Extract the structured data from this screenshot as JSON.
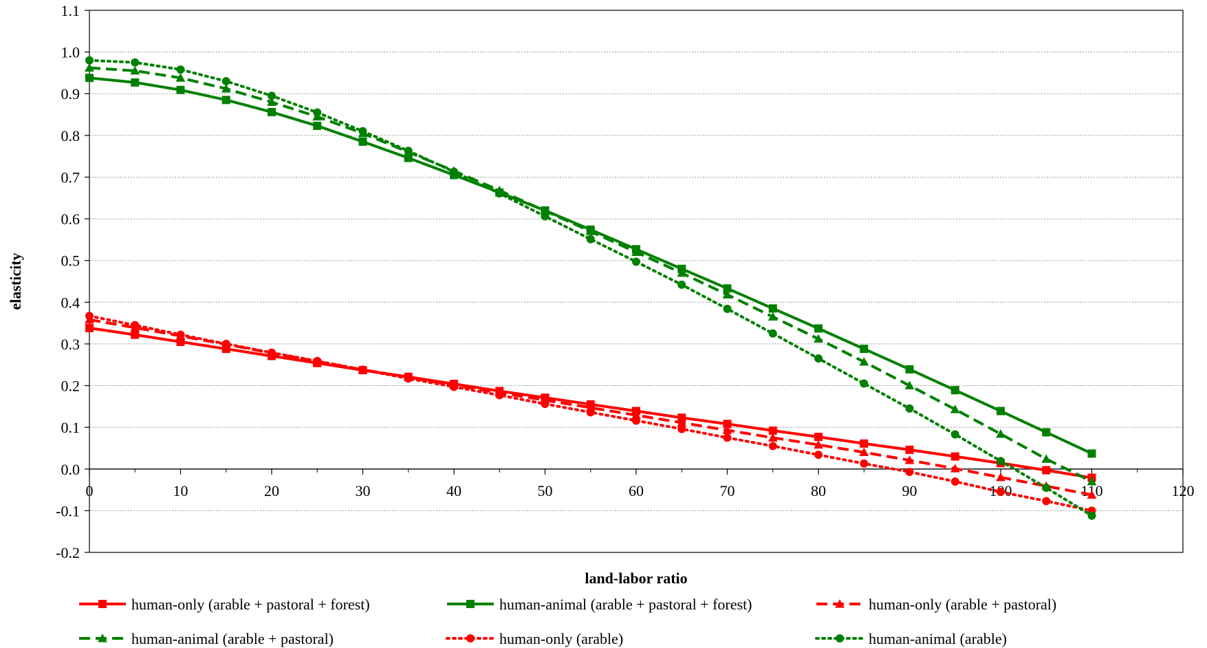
{
  "chart_data": {
    "type": "line",
    "xlabel": "land-labor ratio",
    "ylabel": "elasticity",
    "xlim": [
      0,
      120
    ],
    "ylim": [
      -0.2,
      1.1
    ],
    "x_ticks": [
      "0",
      "10",
      "20",
      "30",
      "40",
      "50",
      "60",
      "70",
      "80",
      "90",
      "100",
      "110",
      "120"
    ],
    "y_ticks": [
      "1.1",
      "1.0",
      "0.9",
      "0.8",
      "0.7",
      "0.6",
      "0.5",
      "0.4",
      "0.3",
      "0.2",
      "0.1",
      "0.0",
      "-0.1",
      "-0.2"
    ],
    "x": [
      0,
      5,
      10,
      15,
      20,
      25,
      30,
      35,
      40,
      45,
      50,
      55,
      60,
      65,
      70,
      75,
      80,
      85,
      90,
      95,
      100,
      105,
      110
    ],
    "grid": "horizontal",
    "legend_position": "bottom",
    "series": [
      {
        "name": "human-only (arable + pastoral + forest)",
        "color": "#ff0000",
        "dash": "solid",
        "marker": "square",
        "values": [
          0.338,
          0.322,
          0.305,
          0.288,
          0.271,
          0.254,
          0.237,
          0.221,
          0.204,
          0.187,
          0.171,
          0.155,
          0.139,
          0.123,
          0.108,
          0.092,
          0.077,
          0.061,
          0.046,
          0.03,
          0.014,
          -0.003,
          -0.021
        ]
      },
      {
        "name": "human-animal (arable + pastoral + forest)",
        "color": "#008000",
        "dash": "solid",
        "marker": "square",
        "values": [
          0.938,
          0.927,
          0.909,
          0.885,
          0.856,
          0.823,
          0.785,
          0.746,
          0.705,
          0.663,
          0.62,
          0.574,
          0.527,
          0.48,
          0.433,
          0.385,
          0.337,
          0.288,
          0.239,
          0.189,
          0.139,
          0.088,
          0.037
        ]
      },
      {
        "name": "human-only (arable + pastoral)",
        "color": "#ff0000",
        "dash": "dashed",
        "marker": "triangle",
        "values": [
          0.358,
          0.339,
          0.319,
          0.299,
          0.278,
          0.258,
          0.238,
          0.22,
          0.201,
          0.183,
          0.165,
          0.147,
          0.129,
          0.111,
          0.093,
          0.075,
          0.058,
          0.04,
          0.021,
          0.001,
          -0.02,
          -0.041,
          -0.062
        ]
      },
      {
        "name": "human-animal (arable + pastoral)",
        "color": "#008000",
        "dash": "dashed",
        "marker": "triangle",
        "values": [
          0.962,
          0.955,
          0.938,
          0.912,
          0.88,
          0.845,
          0.805,
          0.76,
          0.715,
          0.668,
          0.619,
          0.57,
          0.52,
          0.47,
          0.418,
          0.365,
          0.312,
          0.257,
          0.2,
          0.143,
          0.084,
          0.024,
          -0.03
        ]
      },
      {
        "name": "human-only (arable)",
        "color": "#ff0000",
        "dash": "dotted",
        "marker": "circle",
        "values": [
          0.367,
          0.345,
          0.322,
          0.3,
          0.279,
          0.259,
          0.238,
          0.217,
          0.197,
          0.177,
          0.156,
          0.136,
          0.116,
          0.096,
          0.075,
          0.055,
          0.034,
          0.013,
          -0.007,
          -0.03,
          -0.055,
          -0.077,
          -0.1
        ]
      },
      {
        "name": "human-animal (arable)",
        "color": "#008000",
        "dash": "dotted",
        "marker": "circle",
        "values": [
          0.98,
          0.975,
          0.958,
          0.93,
          0.895,
          0.855,
          0.81,
          0.763,
          0.713,
          0.661,
          0.606,
          0.551,
          0.497,
          0.442,
          0.384,
          0.325,
          0.265,
          0.205,
          0.145,
          0.083,
          0.019,
          -0.045,
          -0.112
        ]
      }
    ]
  }
}
